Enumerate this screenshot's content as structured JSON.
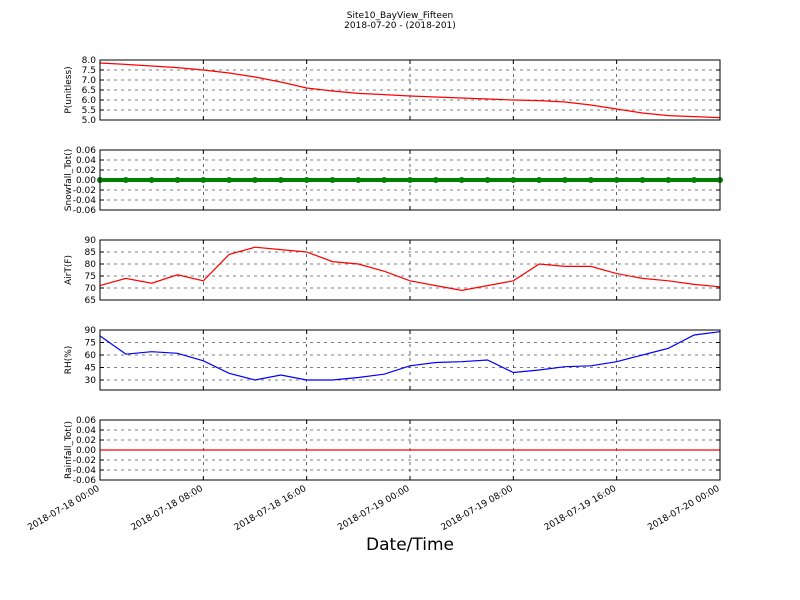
{
  "chart_data": [
    {
      "type": "line",
      "title": "Site10_BayView_Fifteen",
      "subtitle": "2018-07-20 - (2018-201)",
      "y_label": "P(unitless)",
      "color": "#ff0000",
      "grid": true,
      "x": [
        "2018-07-18 00:00",
        "2018-07-18 02:00",
        "2018-07-18 04:00",
        "2018-07-18 06:00",
        "2018-07-18 08:00",
        "2018-07-18 10:00",
        "2018-07-18 12:00",
        "2018-07-18 14:00",
        "2018-07-18 16:00",
        "2018-07-18 18:00",
        "2018-07-18 20:00",
        "2018-07-18 22:00",
        "2018-07-19 00:00",
        "2018-07-19 02:00",
        "2018-07-19 04:00",
        "2018-07-19 06:00",
        "2018-07-19 08:00",
        "2018-07-19 10:00",
        "2018-07-19 12:00",
        "2018-07-19 14:00",
        "2018-07-19 16:00",
        "2018-07-19 18:00",
        "2018-07-19 20:00",
        "2018-07-19 22:00",
        "2018-07-20 00:00"
      ],
      "values": [
        7.85,
        7.78,
        7.7,
        7.62,
        7.5,
        7.35,
        7.15,
        6.9,
        6.6,
        6.45,
        6.33,
        6.27,
        6.2,
        6.15,
        6.1,
        6.05,
        6.0,
        5.97,
        5.9,
        5.75,
        5.55,
        5.35,
        5.22,
        5.17,
        5.12
      ],
      "xlim": [
        "2018-07-18 00:00",
        "2018-07-20 00:00"
      ],
      "ylim": [
        5,
        8
      ],
      "yticks": [
        {
          "value": 5,
          "label": "5.0"
        },
        5.5,
        {
          "value": 6,
          "label": "6.0"
        },
        6.5,
        {
          "value": 7,
          "label": "7.0"
        },
        7.5,
        {
          "value": 8,
          "label": "8.0"
        }
      ]
    },
    {
      "type": "scatter",
      "y_label": "Snowfall_Tot()",
      "color": "#008000",
      "grid": true,
      "x": [
        "2018-07-18 00:00",
        "2018-07-18 02:00",
        "2018-07-18 04:00",
        "2018-07-18 06:00",
        "2018-07-18 08:00",
        "2018-07-18 10:00",
        "2018-07-18 12:00",
        "2018-07-18 14:00",
        "2018-07-18 16:00",
        "2018-07-18 18:00",
        "2018-07-18 20:00",
        "2018-07-18 22:00",
        "2018-07-19 00:00",
        "2018-07-19 02:00",
        "2018-07-19 04:00",
        "2018-07-19 06:00",
        "2018-07-19 08:00",
        "2018-07-19 10:00",
        "2018-07-19 12:00",
        "2018-07-19 14:00",
        "2018-07-19 16:00",
        "2018-07-19 18:00",
        "2018-07-19 20:00",
        "2018-07-19 22:00",
        "2018-07-20 00:00"
      ],
      "values": [
        0,
        0,
        0,
        0,
        0,
        0,
        0,
        0,
        0,
        0,
        0,
        0,
        0,
        0,
        0,
        0,
        0,
        0,
        0,
        0,
        0,
        0,
        0,
        0,
        0
      ],
      "xlim": [
        "2018-07-18 00:00",
        "2018-07-20 00:00"
      ],
      "ylim": [
        -0.06,
        0.06
      ],
      "yticks": [
        -0.06,
        -0.04,
        -0.02,
        {
          "value": 0,
          "label": "0.00"
        },
        0.02,
        0.04,
        0.06
      ]
    },
    {
      "type": "line",
      "y_label": "AirT(F)",
      "color": "#ff0000",
      "grid": true,
      "x": [
        "2018-07-18 00:00",
        "2018-07-18 02:00",
        "2018-07-18 04:00",
        "2018-07-18 06:00",
        "2018-07-18 08:00",
        "2018-07-18 10:00",
        "2018-07-18 12:00",
        "2018-07-18 14:00",
        "2018-07-18 16:00",
        "2018-07-18 18:00",
        "2018-07-18 20:00",
        "2018-07-18 22:00",
        "2018-07-19 00:00",
        "2018-07-19 02:00",
        "2018-07-19 04:00",
        "2018-07-19 06:00",
        "2018-07-19 08:00",
        "2018-07-19 10:00",
        "2018-07-19 12:00",
        "2018-07-19 14:00",
        "2018-07-19 16:00",
        "2018-07-19 18:00",
        "2018-07-19 20:00",
        "2018-07-19 22:00",
        "2018-07-20 00:00"
      ],
      "values": [
        71,
        74,
        72,
        75.5,
        73,
        84,
        87,
        86,
        85,
        81,
        80,
        77,
        73,
        71,
        69,
        71,
        73,
        80,
        79,
        79,
        76,
        74,
        73,
        71.5,
        70.5
      ],
      "xlim": [
        "2018-07-18 00:00",
        "2018-07-20 00:00"
      ],
      "ylim": [
        65,
        90
      ],
      "yticks": [
        65,
        70,
        75,
        80,
        85,
        90
      ]
    },
    {
      "type": "line",
      "y_label": "RH(%)",
      "color": "#0000ff",
      "grid": true,
      "x": [
        "2018-07-18 00:00",
        "2018-07-18 02:00",
        "2018-07-18 04:00",
        "2018-07-18 06:00",
        "2018-07-18 08:00",
        "2018-07-18 10:00",
        "2018-07-18 12:00",
        "2018-07-18 14:00",
        "2018-07-18 16:00",
        "2018-07-18 18:00",
        "2018-07-18 20:00",
        "2018-07-18 22:00",
        "2018-07-19 00:00",
        "2018-07-19 02:00",
        "2018-07-19 04:00",
        "2018-07-19 06:00",
        "2018-07-19 08:00",
        "2018-07-19 10:00",
        "2018-07-19 12:00",
        "2018-07-19 14:00",
        "2018-07-19 16:00",
        "2018-07-19 18:00",
        "2018-07-19 20:00",
        "2018-07-19 22:00",
        "2018-07-20 00:00"
      ],
      "values": [
        83,
        61,
        64,
        62,
        53,
        38,
        30,
        36,
        30,
        30,
        33,
        37,
        47,
        51,
        52,
        54,
        39,
        42,
        46,
        47,
        52,
        60,
        68,
        84,
        88
      ],
      "xlim": [
        "2018-07-18 00:00",
        "2018-07-20 00:00"
      ],
      "ylim": [
        18,
        90
      ],
      "yticks": [
        30,
        45,
        60,
        75,
        90
      ]
    },
    {
      "type": "line",
      "y_label": "Rainfall_Tot()",
      "x_label": "Date/Time",
      "color": "#ff0000",
      "grid": true,
      "x": [
        "2018-07-18 00:00",
        "2018-07-18 02:00",
        "2018-07-18 04:00",
        "2018-07-18 06:00",
        "2018-07-18 08:00",
        "2018-07-18 10:00",
        "2018-07-18 12:00",
        "2018-07-18 14:00",
        "2018-07-18 16:00",
        "2018-07-18 18:00",
        "2018-07-18 20:00",
        "2018-07-18 22:00",
        "2018-07-19 00:00",
        "2018-07-19 02:00",
        "2018-07-19 04:00",
        "2018-07-19 06:00",
        "2018-07-19 08:00",
        "2018-07-19 10:00",
        "2018-07-19 12:00",
        "2018-07-19 14:00",
        "2018-07-19 16:00",
        "2018-07-19 18:00",
        "2018-07-19 20:00",
        "2018-07-19 22:00",
        "2018-07-20 00:00"
      ],
      "values": [
        0,
        0,
        0,
        0,
        0,
        0,
        0,
        0,
        0,
        0,
        0,
        0,
        0,
        0,
        0,
        0,
        0,
        0,
        0,
        0,
        0,
        0,
        0,
        0,
        0
      ],
      "xlim": [
        "2018-07-18 00:00",
        "2018-07-20 00:00"
      ],
      "ylim": [
        -0.06,
        0.06
      ],
      "yticks": [
        -0.06,
        -0.04,
        -0.02,
        {
          "value": 0,
          "label": "0.00"
        },
        0.02,
        0.04,
        0.06
      ],
      "xticks": [
        "2018-07-18 00:00",
        "2018-07-18 08:00",
        "2018-07-18 16:00",
        "2018-07-19 00:00",
        "2018-07-19 08:00",
        "2018-07-19 16:00",
        "2018-07-20 00:00"
      ]
    }
  ]
}
